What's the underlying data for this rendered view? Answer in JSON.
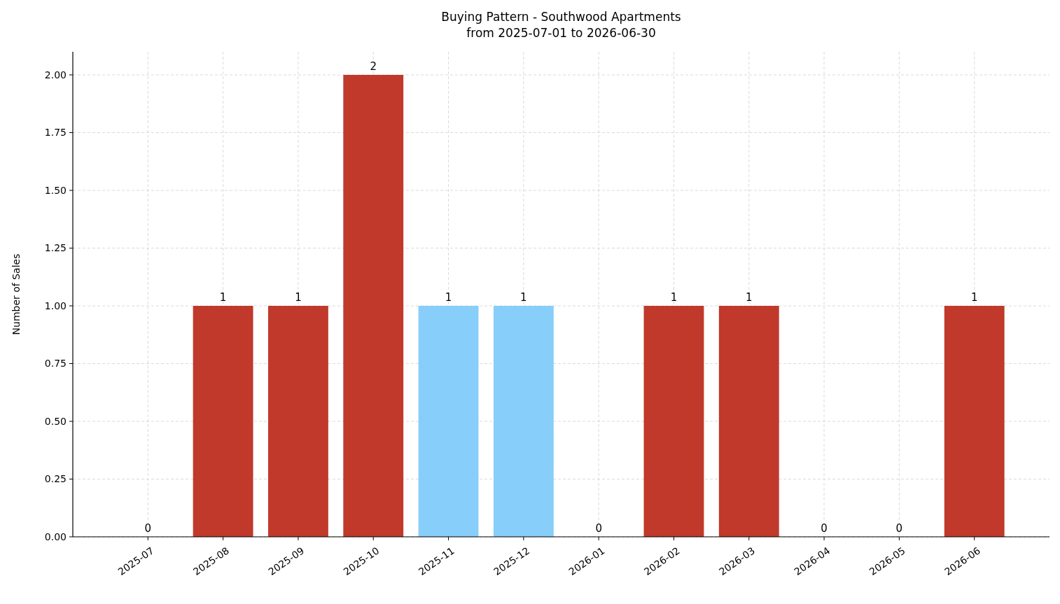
{
  "chart_data": {
    "type": "bar",
    "title": "Buying Pattern - Southwood Apartments\nfrom 2025-07-01 to 2026-06-30",
    "ylabel": "Number of Sales",
    "categories": [
      "2025-07",
      "2025-08",
      "2025-09",
      "2025-10",
      "2025-11",
      "2025-12",
      "2026-01",
      "2026-02",
      "2026-03",
      "2026-04",
      "2026-05",
      "2026-06"
    ],
    "values": [
      0,
      1,
      1,
      2,
      1,
      1,
      0,
      1,
      1,
      0,
      0,
      1
    ],
    "colors": [
      "#c0392b",
      "#c0392b",
      "#c0392b",
      "#c0392b",
      "#87cefa",
      "#87cefa",
      "#c0392b",
      "#c0392b",
      "#c0392b",
      "#c0392b",
      "#c0392b",
      "#c0392b"
    ],
    "ylim": [
      0,
      2.1
    ],
    "yticks": [
      {
        "value": 0,
        "label": "0.00"
      },
      {
        "value": 0.25,
        "label": "0.25"
      },
      {
        "value": 0.5,
        "label": "0.50"
      },
      {
        "value": 0.75,
        "label": "0.75"
      },
      {
        "value": 1,
        "label": "1.00"
      },
      {
        "value": 1.25,
        "label": "1.25"
      },
      {
        "value": 1.5,
        "label": "1.50"
      },
      {
        "value": 1.75,
        "label": "1.75"
      },
      {
        "value": 2,
        "label": "2.00"
      }
    ],
    "grid": true,
    "data_labels": true
  }
}
